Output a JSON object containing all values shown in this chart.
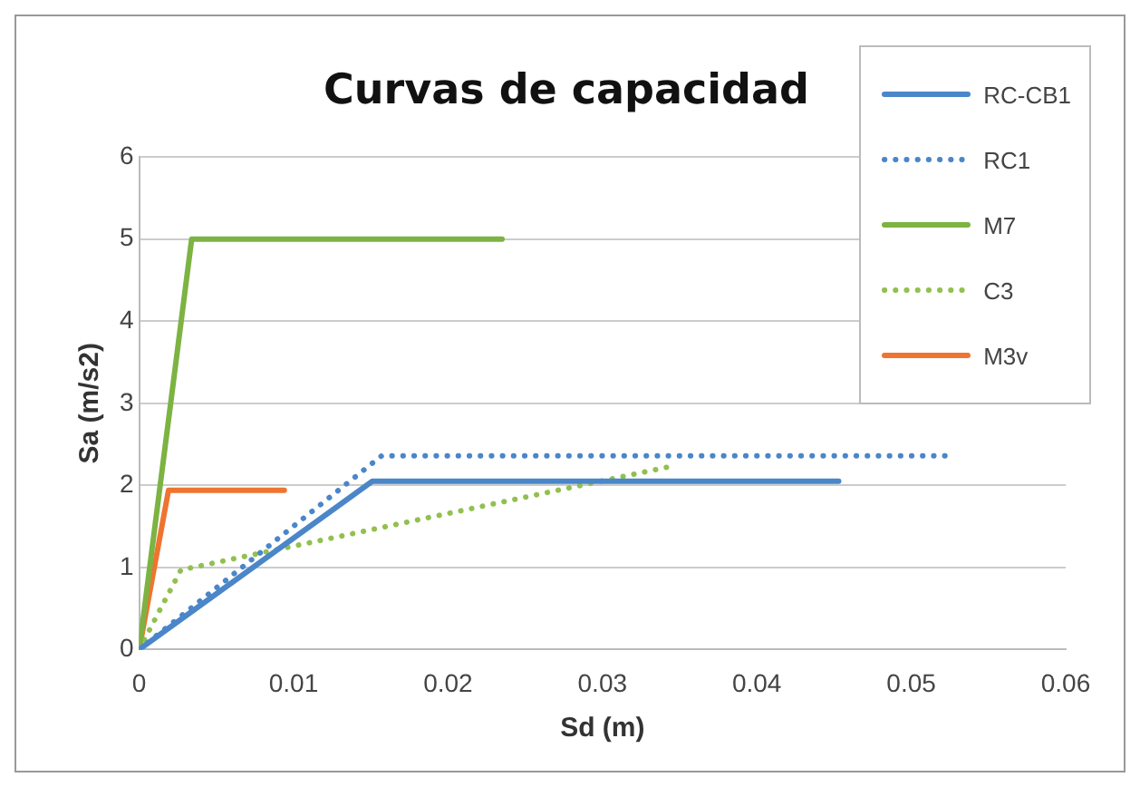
{
  "chart_data": {
    "type": "line",
    "title": "Curvas de capacidad",
    "xlabel": "Sd (m)",
    "ylabel": "Sa (m/s2)",
    "xlim": [
      0,
      0.06
    ],
    "xticks": [
      0,
      0.01,
      0.02,
      0.03,
      0.04,
      0.05,
      0.06
    ],
    "ylim": [
      0,
      6
    ],
    "yticks": [
      0,
      1,
      2,
      3,
      4,
      5,
      6
    ],
    "grid": "y",
    "legend": "top right",
    "marker": "none",
    "series": [
      {
        "name": "RC-CB1",
        "color": "#4a86c8",
        "line_style": "solid",
        "x": [
          0,
          0.0151,
          0.0453
        ],
        "values": [
          0,
          2.05,
          2.05
        ]
      },
      {
        "name": "RC1",
        "color": "#4a86c8",
        "line_style": "dotted",
        "x": [
          0,
          0.0157,
          0.0524
        ],
        "values": [
          0,
          2.36,
          2.36
        ]
      },
      {
        "name": "M7",
        "color": "#7cb342",
        "line_style": "solid",
        "x": [
          0,
          0.0034,
          0.0235
        ],
        "values": [
          0,
          5,
          5
        ]
      },
      {
        "name": "C3",
        "color": "#92c050",
        "line_style": "dotted",
        "x": [
          0,
          0.0027,
          0.0344
        ],
        "values": [
          0,
          0.97,
          2.23
        ]
      },
      {
        "name": "M3v",
        "color": "#ef7430",
        "line_style": "solid",
        "x": [
          0,
          0.0019,
          0.0094
        ],
        "values": [
          0,
          1.94,
          1.94
        ]
      }
    ]
  }
}
